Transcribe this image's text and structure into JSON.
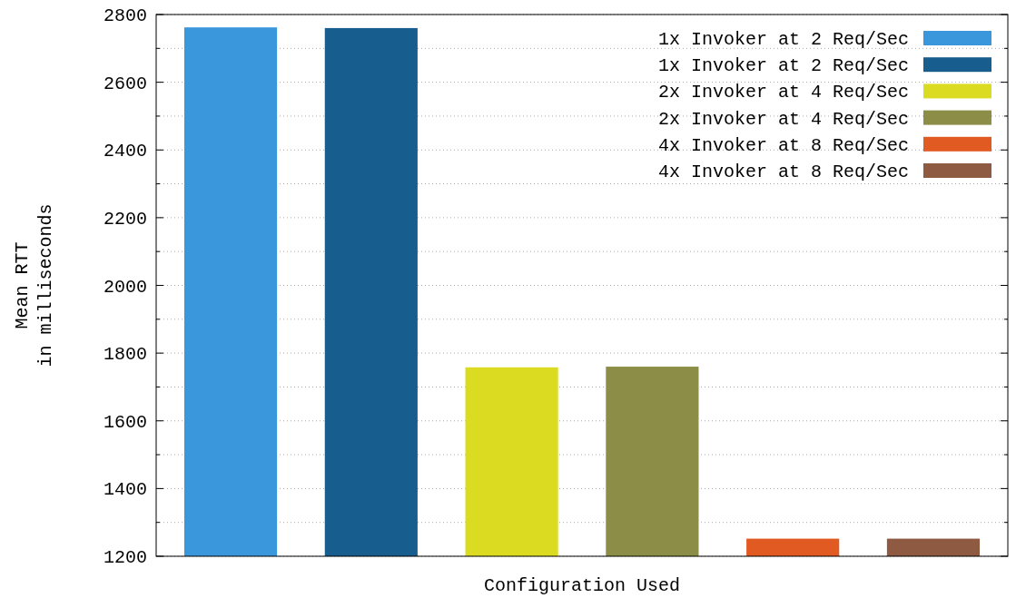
{
  "chart_data": {
    "type": "bar",
    "xlabel": "Configuration Used",
    "ylabel": "Mean RTT\nin milliseconds",
    "categories": [
      null,
      null,
      null,
      null,
      null,
      null
    ],
    "series": [
      {
        "name": "1x Invoker at 2 Req/Sec",
        "color": "#3a97dc",
        "values": [
          2762,
          null,
          null,
          null,
          null,
          null
        ]
      },
      {
        "name": "1x Invoker at 2 Req/Sec",
        "color": "#175e8e",
        "values": [
          null,
          2760,
          null,
          null,
          null,
          null
        ]
      },
      {
        "name": "2x Invoker at 4 Req/Sec",
        "color": "#dbdb22",
        "values": [
          null,
          null,
          1758,
          null,
          null,
          null
        ]
      },
      {
        "name": "2x Invoker at 4 Req/Sec",
        "color": "#8c8e47",
        "values": [
          null,
          null,
          null,
          1760,
          null,
          null
        ]
      },
      {
        "name": "4x Invoker at 8 Req/Sec",
        "color": "#e05a22",
        "values": [
          null,
          null,
          null,
          null,
          1252,
          null
        ]
      },
      {
        "name": "4x Invoker at 8 Req/Sec",
        "color": "#8e5a42",
        "values": [
          null,
          null,
          null,
          null,
          null,
          1252
        ]
      }
    ],
    "ylim": [
      1200,
      2800
    ],
    "yticks": [
      1200,
      {
        "value": 1300,
        "label": null
      },
      1400,
      {
        "value": 1500,
        "label": null
      },
      1600,
      {
        "value": 1700,
        "label": null
      },
      1800,
      {
        "value": 1900,
        "label": null
      },
      2000,
      {
        "value": 2100,
        "label": null
      },
      2200,
      {
        "value": 2300,
        "label": null
      },
      2400,
      {
        "value": 2500,
        "label": null
      },
      2600,
      {
        "value": 2700,
        "label": null
      },
      2800
    ],
    "grid": true,
    "legend": "top right"
  }
}
